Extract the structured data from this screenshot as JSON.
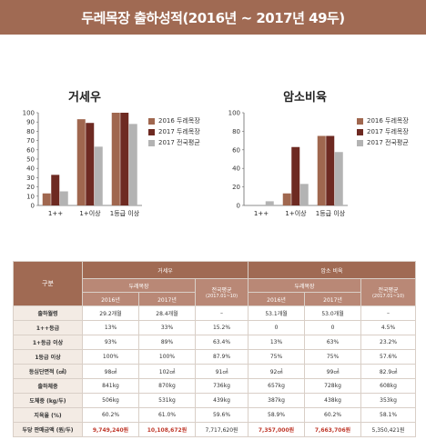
{
  "title": "두레목장 출하성적(2016년 ~ 2017년 49두)",
  "colors": {
    "s2016": "#a0674f",
    "s2017": "#6e2a22",
    "avg": "#b3b3b3",
    "brand": "#a06a53"
  },
  "legend": [
    "2016 두레목장",
    "2017 두레목장",
    "2017 전국평균"
  ],
  "charts": [
    {
      "title": "거세우",
      "categories": [
        "1++",
        "1+이상",
        "1등급 이상"
      ],
      "ylim": [
        0,
        100
      ],
      "yticks": [
        "0",
        "10",
        "20",
        "30",
        "40",
        "50",
        "60",
        "70",
        "80",
        "90",
        "100"
      ]
    },
    {
      "title": "암소비육",
      "categories": [
        "1++",
        "1+이상",
        "1등급 이상"
      ],
      "ylim": [
        0,
        100
      ],
      "yticks": [
        "0",
        "20",
        "40",
        "60",
        "80",
        "100"
      ]
    }
  ],
  "chart_data": [
    {
      "type": "bar",
      "title": "거세우",
      "categories": [
        "1++",
        "1+이상",
        "1등급 이상"
      ],
      "series": [
        {
          "name": "2016 두레목장",
          "values": [
            13,
            93,
            100
          ]
        },
        {
          "name": "2017 두레목장",
          "values": [
            33,
            89,
            100
          ]
        },
        {
          "name": "2017 전국평균",
          "values": [
            15.2,
            63.4,
            87.9
          ]
        }
      ],
      "ylim": [
        0,
        100
      ],
      "legend": "right"
    },
    {
      "type": "bar",
      "title": "암소비육",
      "categories": [
        "1++",
        "1+이상",
        "1등급 이상"
      ],
      "series": [
        {
          "name": "2016 두레목장",
          "values": [
            0,
            13,
            75
          ]
        },
        {
          "name": "2017 두레목장",
          "values": [
            0,
            63,
            75
          ]
        },
        {
          "name": "2017 전국평균",
          "values": [
            4.5,
            23.2,
            57.6
          ]
        }
      ],
      "ylim": [
        0,
        100
      ],
      "legend": "right"
    }
  ],
  "table": {
    "gubun": "구분",
    "group1": "거세우",
    "group2": "암소 비육",
    "farm": "두레목장",
    "national": "전국평균",
    "national_note": "(2017.01~10)",
    "y2016": "2016년",
    "y2017": "2017년",
    "rows": [
      {
        "label": "출하월령",
        "v": [
          "29.2개월",
          "28.4개월",
          "–",
          "53.1개월",
          "53.0개월",
          "–"
        ]
      },
      {
        "label": "1++등급",
        "v": [
          "13%",
          "33%",
          "15.2%",
          "0",
          "0",
          "4.5%"
        ]
      },
      {
        "label": "1+등급 이상",
        "v": [
          "93%",
          "89%",
          "63.4%",
          "13%",
          "63%",
          "23.2%"
        ]
      },
      {
        "label": "1등급 이상",
        "v": [
          "100%",
          "100%",
          "87.9%",
          "75%",
          "75%",
          "57.6%"
        ]
      },
      {
        "label": "등심단면적 (㎠)",
        "v": [
          "98㎠",
          "102㎠",
          "91㎠",
          "92㎠",
          "99㎠",
          "82.9㎠"
        ]
      },
      {
        "label": "출하체중",
        "v": [
          "841kg",
          "870kg",
          "736kg",
          "657kg",
          "728kg",
          "608kg"
        ]
      },
      {
        "label": "도체중 (kg/두)",
        "v": [
          "506kg",
          "531kg",
          "439kg",
          "387kg",
          "438kg",
          "353kg"
        ]
      },
      {
        "label": "지육율 (%)",
        "v": [
          "60.2%",
          "61.0%",
          "59.6%",
          "58.9%",
          "60.2%",
          "58.1%"
        ]
      },
      {
        "label": "두당 판매금액 (원/두)",
        "v": [
          "9,749,240원",
          "10,108,672원",
          "7,717,620원",
          "7,357,000원",
          "7,663,706원",
          "5,350,421원"
        ],
        "red": [
          0,
          1,
          3,
          4
        ]
      }
    ]
  }
}
